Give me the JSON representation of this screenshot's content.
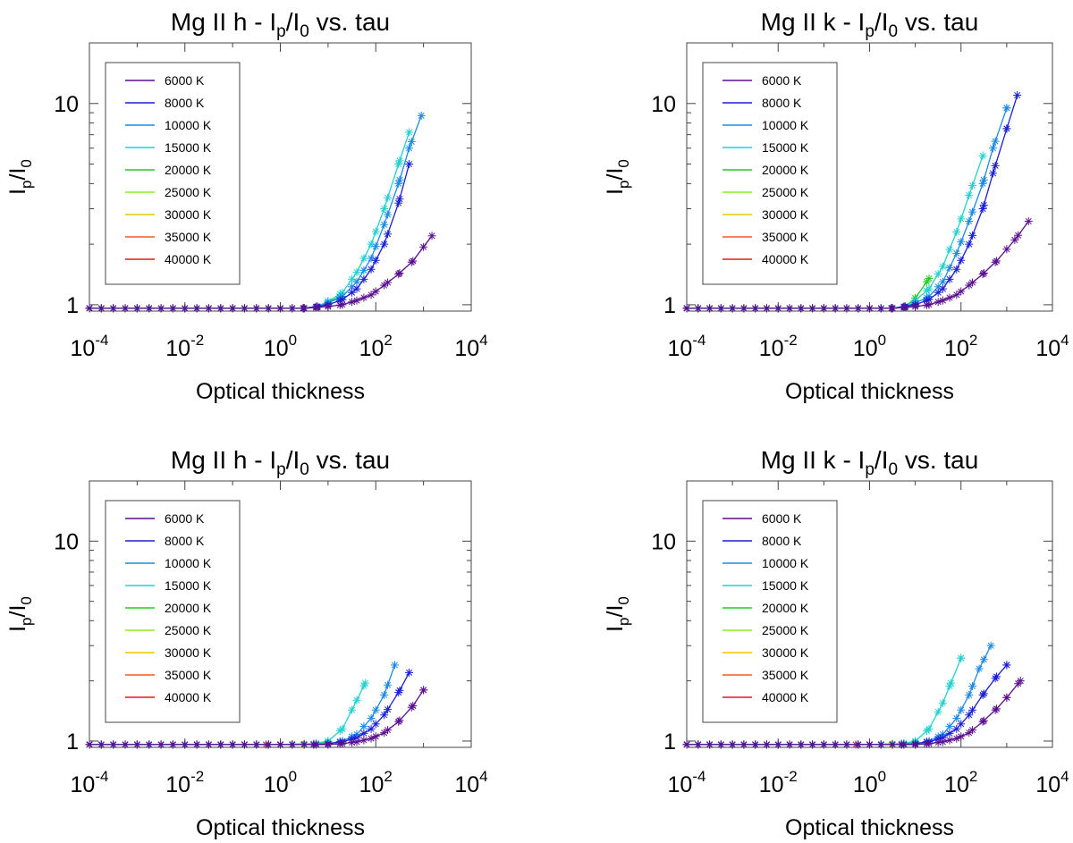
{
  "chart_data": [
    {
      "type": "line",
      "panel": "top-left",
      "title_main": "Mg II h - I",
      "title_sub1": "p",
      "title_mid": "/I",
      "title_sub2": "0",
      "title_tail": " vs. tau",
      "xlabel": "Optical thickness",
      "ylabel_main": "I",
      "ylabel_sub1": "p",
      "ylabel_mid": "/I",
      "ylabel_sub2": "0",
      "xscale": "log",
      "yscale": "log",
      "xlim": [
        0.0001,
        10000
      ],
      "ylim": [
        0.93,
        20
      ],
      "xticks": [
        {
          "base": "10",
          "exp": "-4",
          "value": 0.0001
        },
        {
          "base": "10",
          "exp": "-2",
          "value": 0.01
        },
        {
          "base": "10",
          "exp": "0",
          "value": 1
        },
        {
          "base": "10",
          "exp": "2",
          "value": 100
        },
        {
          "base": "10",
          "exp": "4",
          "value": 10000
        }
      ],
      "yticks": [
        {
          "label": "1",
          "value": 1
        },
        {
          "label": "10",
          "value": 10
        }
      ],
      "legend_position": "top-left",
      "series": [
        {
          "name": "6000 K",
          "color": "#5b0f8f",
          "x": [
            0.0001,
            1,
            3,
            6,
            10,
            20,
            40,
            80,
            150,
            300,
            600,
            1500
          ],
          "y": [
            0.96,
            0.96,
            0.96,
            0.97,
            0.98,
            1.0,
            1.05,
            1.12,
            1.25,
            1.42,
            1.65,
            2.2
          ]
        },
        {
          "name": "8000 K",
          "color": "#1a1fd6",
          "x": [
            0.0001,
            1,
            3,
            6,
            10,
            20,
            40,
            80,
            150,
            300,
            500
          ],
          "y": [
            0.96,
            0.96,
            0.96,
            0.98,
            1.0,
            1.06,
            1.2,
            1.5,
            2.0,
            3.2,
            5.0
          ]
        },
        {
          "name": "10000 K",
          "color": "#1a8ae6",
          "x": [
            0.0001,
            1,
            3,
            6,
            10,
            20,
            40,
            80,
            150,
            300,
            500,
            900
          ],
          "y": [
            0.96,
            0.96,
            0.96,
            0.98,
            1.02,
            1.1,
            1.3,
            1.7,
            2.5,
            4.0,
            6.0,
            8.7
          ]
        },
        {
          "name": "15000 K",
          "color": "#22d0d0",
          "x": [
            0.0001,
            1,
            3,
            6,
            10,
            20,
            40,
            80,
            150,
            300,
            500
          ],
          "y": [
            0.96,
            0.96,
            0.96,
            0.98,
            1.04,
            1.15,
            1.45,
            2.0,
            3.0,
            5.0,
            7.2
          ]
        },
        {
          "name": "20000 K",
          "color": "#22cc22",
          "x": [
            0.0001,
            1,
            3,
            6,
            10,
            20
          ],
          "y": [
            0.96,
            0.96,
            0.96,
            0.98,
            1.04,
            1.1
          ]
        },
        {
          "name": "25000 K",
          "color": "#88ee22",
          "x": [
            0.0001,
            1,
            3,
            6,
            10
          ],
          "y": [
            0.96,
            0.96,
            0.96,
            0.97,
            1.0
          ]
        },
        {
          "name": "30000 K",
          "color": "#e6c800",
          "x": [
            0.0001,
            1,
            3,
            6
          ],
          "y": [
            0.96,
            0.96,
            0.96,
            0.97
          ]
        },
        {
          "name": "35000 K",
          "color": "#f05a20",
          "x": [
            0.0001,
            1,
            3
          ],
          "y": [
            0.96,
            0.96,
            0.96
          ]
        },
        {
          "name": "40000 K",
          "color": "#e01818",
          "x": [
            0.0001,
            1
          ],
          "y": [
            0.96,
            0.96
          ]
        }
      ]
    },
    {
      "type": "line",
      "panel": "top-right",
      "title_main": "Mg II k - I",
      "title_sub1": "p",
      "title_mid": "/I",
      "title_sub2": "0",
      "title_tail": " vs. tau",
      "xlabel": "Optical thickness",
      "ylabel_main": "I",
      "ylabel_sub1": "p",
      "ylabel_mid": "/I",
      "ylabel_sub2": "0",
      "xscale": "log",
      "yscale": "log",
      "xlim": [
        0.0001,
        10000
      ],
      "ylim": [
        0.93,
        20
      ],
      "xticks": [
        {
          "base": "10",
          "exp": "-4",
          "value": 0.0001
        },
        {
          "base": "10",
          "exp": "-2",
          "value": 0.01
        },
        {
          "base": "10",
          "exp": "0",
          "value": 1
        },
        {
          "base": "10",
          "exp": "2",
          "value": 100
        },
        {
          "base": "10",
          "exp": "4",
          "value": 10000
        }
      ],
      "yticks": [
        {
          "label": "1",
          "value": 1
        },
        {
          "label": "10",
          "value": 10
        }
      ],
      "legend_position": "top-left",
      "series": [
        {
          "name": "6000 K",
          "color": "#5b0f8f",
          "x": [
            0.0001,
            1,
            3,
            6,
            10,
            20,
            40,
            80,
            150,
            300,
            600,
            1500,
            3000
          ],
          "y": [
            0.96,
            0.96,
            0.96,
            0.97,
            0.98,
            1.0,
            1.05,
            1.12,
            1.25,
            1.42,
            1.65,
            2.1,
            2.6
          ]
        },
        {
          "name": "8000 K",
          "color": "#1a1fd6",
          "x": [
            0.0001,
            1,
            3,
            6,
            10,
            20,
            40,
            80,
            150,
            300,
            500,
            1000,
            1700
          ],
          "y": [
            0.96,
            0.96,
            0.96,
            0.98,
            1.0,
            1.06,
            1.2,
            1.5,
            2.0,
            3.0,
            4.5,
            7.5,
            11.0
          ]
        },
        {
          "name": "10000 K",
          "color": "#1a8ae6",
          "x": [
            0.0001,
            1,
            3,
            6,
            10,
            20,
            40,
            80,
            150,
            300,
            500,
            1000
          ],
          "y": [
            0.96,
            0.96,
            0.96,
            0.98,
            1.02,
            1.1,
            1.3,
            1.8,
            2.6,
            4.0,
            6.0,
            9.5
          ]
        },
        {
          "name": "15000 K",
          "color": "#22d0d0",
          "x": [
            0.0001,
            1,
            3,
            6,
            10,
            20,
            40,
            80,
            150,
            300
          ],
          "y": [
            0.96,
            0.96,
            0.96,
            0.98,
            1.05,
            1.2,
            1.55,
            2.3,
            3.5,
            5.5
          ]
        },
        {
          "name": "20000 K",
          "color": "#22cc22",
          "x": [
            0.0001,
            1,
            3,
            6,
            10,
            20
          ],
          "y": [
            0.96,
            0.96,
            0.96,
            0.98,
            1.08,
            1.35
          ]
        },
        {
          "name": "25000 K",
          "color": "#88ee22",
          "x": [
            0.0001,
            1,
            3,
            6,
            10
          ],
          "y": [
            0.96,
            0.96,
            0.96,
            0.97,
            1.0
          ]
        },
        {
          "name": "30000 K",
          "color": "#e6c800",
          "x": [
            0.0001,
            1,
            3,
            6
          ],
          "y": [
            0.96,
            0.96,
            0.96,
            0.97
          ]
        },
        {
          "name": "35000 K",
          "color": "#f05a20",
          "x": [
            0.0001,
            1,
            3
          ],
          "y": [
            0.96,
            0.96,
            0.96
          ]
        },
        {
          "name": "40000 K",
          "color": "#e01818",
          "x": [
            0.0001,
            1
          ],
          "y": [
            0.96,
            0.96
          ]
        }
      ]
    },
    {
      "type": "line",
      "panel": "bottom-left",
      "title_main": "Mg II h - I",
      "title_sub1": "p",
      "title_mid": "/I",
      "title_sub2": "0",
      "title_tail": " vs. tau",
      "xlabel": "Optical thickness",
      "ylabel_main": "I",
      "ylabel_sub1": "p",
      "ylabel_mid": "/I",
      "ylabel_sub2": "0",
      "xscale": "log",
      "yscale": "log",
      "xlim": [
        0.0001,
        10000
      ],
      "ylim": [
        0.93,
        20
      ],
      "xticks": [
        {
          "base": "10",
          "exp": "-4",
          "value": 0.0001
        },
        {
          "base": "10",
          "exp": "-2",
          "value": 0.01
        },
        {
          "base": "10",
          "exp": "0",
          "value": 1
        },
        {
          "base": "10",
          "exp": "2",
          "value": 100
        },
        {
          "base": "10",
          "exp": "4",
          "value": 10000
        }
      ],
      "yticks": [
        {
          "label": "1",
          "value": 1
        },
        {
          "label": "10",
          "value": 10
        }
      ],
      "legend_position": "top-left",
      "series": [
        {
          "name": "6000 K",
          "color": "#5b0f8f",
          "x": [
            0.0001,
            1,
            5,
            10,
            20,
            40,
            80,
            150,
            300,
            600,
            1000
          ],
          "y": [
            0.96,
            0.96,
            0.96,
            0.96,
            0.97,
            0.99,
            1.03,
            1.1,
            1.25,
            1.5,
            1.8
          ]
        },
        {
          "name": "8000 K",
          "color": "#1a1fd6",
          "x": [
            0.0001,
            1,
            5,
            10,
            20,
            40,
            80,
            150,
            300,
            500
          ],
          "y": [
            0.96,
            0.96,
            0.96,
            0.97,
            0.99,
            1.04,
            1.15,
            1.35,
            1.75,
            2.2
          ]
        },
        {
          "name": "10000 K",
          "color": "#1a8ae6",
          "x": [
            0.0001,
            1,
            5,
            10,
            20,
            40,
            80,
            150,
            250
          ],
          "y": [
            0.96,
            0.96,
            0.96,
            0.97,
            1.0,
            1.08,
            1.3,
            1.7,
            2.4
          ]
        },
        {
          "name": "15000 K",
          "color": "#22d0d0",
          "x": [
            0.0001,
            1,
            5,
            10,
            20,
            40,
            60
          ],
          "y": [
            0.96,
            0.96,
            0.97,
            1.0,
            1.15,
            1.6,
            1.95
          ]
        },
        {
          "name": "20000 K",
          "color": "#22cc22",
          "x": [
            0.0001,
            1,
            5,
            10
          ],
          "y": [
            0.96,
            0.96,
            0.97,
            0.99
          ]
        },
        {
          "name": "25000 K",
          "color": "#88ee22",
          "x": [
            0.0001,
            1,
            5
          ],
          "y": [
            0.96,
            0.96,
            0.96
          ]
        },
        {
          "name": "30000 K",
          "color": "#e6c800",
          "x": [
            0.0001,
            1,
            3
          ],
          "y": [
            0.96,
            0.96,
            0.96
          ]
        },
        {
          "name": "35000 K",
          "color": "#f05a20",
          "x": [
            0.0001,
            1
          ],
          "y": [
            0.96,
            0.96
          ]
        },
        {
          "name": "40000 K",
          "color": "#e01818",
          "x": [
            0.0001,
            0.5
          ],
          "y": [
            0.96,
            0.96
          ]
        }
      ]
    },
    {
      "type": "line",
      "panel": "bottom-right",
      "title_main": "Mg II k - I",
      "title_sub1": "p",
      "title_mid": "/I",
      "title_sub2": "0",
      "title_tail": " vs. tau",
      "xlabel": "Optical thickness",
      "ylabel_main": "I",
      "ylabel_sub1": "p",
      "ylabel_mid": "/I",
      "ylabel_sub2": "0",
      "xscale": "log",
      "yscale": "log",
      "xlim": [
        0.0001,
        10000
      ],
      "ylim": [
        0.93,
        20
      ],
      "xticks": [
        {
          "base": "10",
          "exp": "-4",
          "value": 0.0001
        },
        {
          "base": "10",
          "exp": "-2",
          "value": 0.01
        },
        {
          "base": "10",
          "exp": "0",
          "value": 1
        },
        {
          "base": "10",
          "exp": "2",
          "value": 100
        },
        {
          "base": "10",
          "exp": "4",
          "value": 10000
        }
      ],
      "yticks": [
        {
          "label": "1",
          "value": 1
        },
        {
          "label": "10",
          "value": 10
        }
      ],
      "legend_position": "top-left",
      "series": [
        {
          "name": "6000 K",
          "color": "#5b0f8f",
          "x": [
            0.0001,
            1,
            5,
            10,
            20,
            40,
            80,
            150,
            300,
            600,
            1000,
            2000
          ],
          "y": [
            0.96,
            0.96,
            0.96,
            0.96,
            0.97,
            0.99,
            1.03,
            1.1,
            1.25,
            1.45,
            1.65,
            2.0
          ]
        },
        {
          "name": "8000 K",
          "color": "#1a1fd6",
          "x": [
            0.0001,
            1,
            5,
            10,
            20,
            40,
            80,
            150,
            300,
            600,
            1000
          ],
          "y": [
            0.96,
            0.96,
            0.96,
            0.97,
            0.99,
            1.04,
            1.15,
            1.35,
            1.7,
            2.1,
            2.4
          ]
        },
        {
          "name": "10000 K",
          "color": "#1a8ae6",
          "x": [
            0.0001,
            1,
            5,
            10,
            20,
            40,
            80,
            150,
            250,
            450
          ],
          "y": [
            0.96,
            0.96,
            0.96,
            0.97,
            1.0,
            1.08,
            1.3,
            1.7,
            2.3,
            3.0
          ]
        },
        {
          "name": "15000 K",
          "color": "#22d0d0",
          "x": [
            0.0001,
            1,
            5,
            10,
            20,
            40,
            60,
            100
          ],
          "y": [
            0.96,
            0.96,
            0.97,
            1.0,
            1.15,
            1.55,
            1.95,
            2.6
          ]
        },
        {
          "name": "20000 K",
          "color": "#22cc22",
          "x": [
            0.0001,
            1,
            5,
            10
          ],
          "y": [
            0.96,
            0.96,
            0.97,
            0.99
          ]
        },
        {
          "name": "25000 K",
          "color": "#88ee22",
          "x": [
            0.0001,
            1,
            5
          ],
          "y": [
            0.96,
            0.96,
            0.96
          ]
        },
        {
          "name": "30000 K",
          "color": "#e6c800",
          "x": [
            0.0001,
            1,
            3
          ],
          "y": [
            0.96,
            0.96,
            0.96
          ]
        },
        {
          "name": "35000 K",
          "color": "#f05a20",
          "x": [
            0.0001,
            1
          ],
          "y": [
            0.96,
            0.96
          ]
        },
        {
          "name": "40000 K",
          "color": "#e01818",
          "x": [
            0.0001,
            0.5
          ],
          "y": [
            0.96,
            0.96
          ]
        }
      ]
    }
  ]
}
